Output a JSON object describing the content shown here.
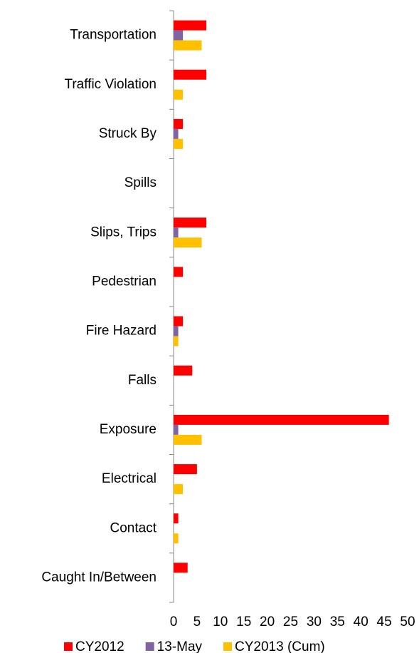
{
  "chart_data": {
    "type": "bar",
    "orientation": "horizontal",
    "categories": [
      "Transportation",
      "Traffic Violation",
      "Struck By",
      "Spills",
      "Slips, Trips",
      "Pedestrian",
      "Fire Hazard",
      "Falls",
      "Exposure",
      "Electrical",
      "Contact",
      "Caught In/Between"
    ],
    "series": [
      {
        "name": "CY2012",
        "color": "#ff0000",
        "values": [
          7,
          7,
          2,
          0,
          7,
          2,
          2,
          4,
          46,
          5,
          1,
          3
        ]
      },
      {
        "name": "13-May",
        "color": "#8064a2",
        "values": [
          2,
          0,
          1,
          0,
          1,
          0,
          1,
          0,
          1,
          0,
          0,
          0
        ]
      },
      {
        "name": "CY2013 (Cum)",
        "color": "#ffc000",
        "values": [
          6,
          2,
          2,
          0,
          6,
          0,
          1,
          0,
          6,
          2,
          1,
          0
        ]
      }
    ],
    "xlim": [
      0,
      50
    ],
    "xticks": [
      0,
      5,
      10,
      15,
      20,
      25,
      30,
      35,
      40,
      45,
      50
    ],
    "legend": "bottom"
  }
}
